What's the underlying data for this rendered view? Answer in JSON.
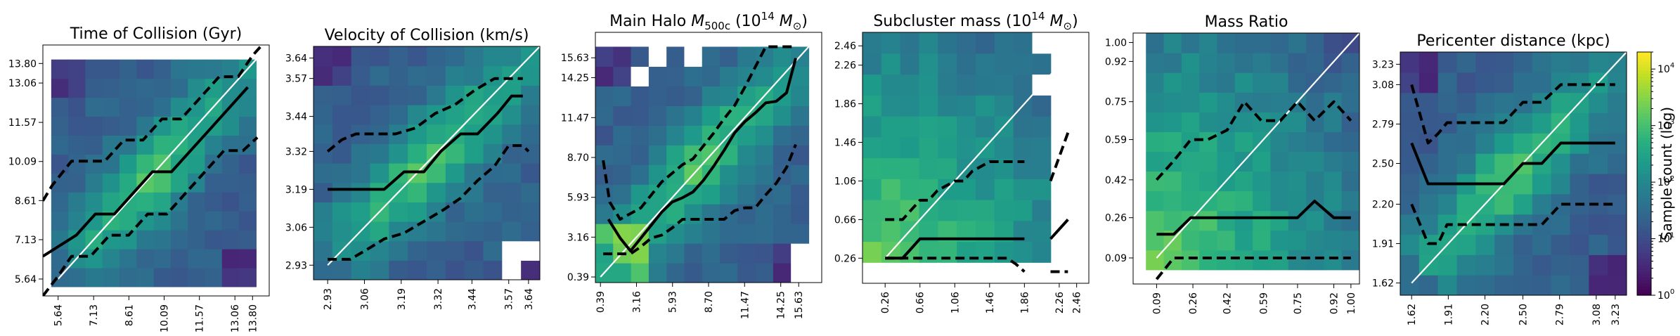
{
  "colors": {
    "colormap": [
      "#440154",
      "#482173",
      "#433e85",
      "#38588c",
      "#2d708e",
      "#25858e",
      "#1e9b8a",
      "#2ab07f",
      "#52c569",
      "#86d549",
      "#c2df23",
      "#fde725"
    ],
    "median_line": "#000000",
    "bound_line": "#000000",
    "identity_line": "#ffffff",
    "masked_cell": "#ffffff"
  },
  "colorbar": {
    "label": "Sample count (log)",
    "scale": "log",
    "range": [
      1,
      20000
    ],
    "ticks": [
      {
        "value": 1,
        "base": "10",
        "exp": "0"
      },
      {
        "value": 10,
        "base": "10",
        "exp": "1"
      },
      {
        "value": 100,
        "base": "10",
        "exp": "2"
      },
      {
        "value": 1000,
        "base": "10",
        "exp": "3"
      },
      {
        "value": 10000,
        "base": "10",
        "exp": "4"
      }
    ]
  },
  "chart_data": [
    {
      "type": "heatmap",
      "title": "Time of Collision (Gyr)",
      "grid": false,
      "lim": [
        5.0,
        14.5
      ],
      "ticks": [
        5.64,
        7.13,
        8.61,
        10.09,
        11.57,
        13.06,
        13.8
      ],
      "tick_labels": [
        "5.64",
        "7.13",
        "8.61",
        "10.09",
        "11.57",
        "13.06",
        "13.80"
      ],
      "hm_lim": [
        5.35,
        13.95
      ],
      "masked_cells": [],
      "peak_diagonal": true,
      "median": {
        "x": [
          5.0,
          6.4,
          7.2,
          8.0,
          8.8,
          9.6,
          10.4,
          11.2,
          12.0,
          12.8,
          13.6
        ],
        "y": [
          6.5,
          7.3,
          8.1,
          8.1,
          8.9,
          9.7,
          9.7,
          10.5,
          11.3,
          12.1,
          12.9
        ]
      },
      "upper": {
        "x": [
          5.0,
          5.4,
          6.2,
          6.8,
          7.6,
          8.4,
          9.2,
          10.0,
          10.8,
          11.6,
          12.4,
          13.2,
          13.8,
          14.2
        ],
        "y": [
          8.6,
          9.2,
          10.1,
          10.1,
          10.1,
          10.9,
          10.9,
          11.7,
          11.7,
          12.5,
          13.3,
          13.3,
          14.1,
          14.5
        ]
      },
      "lower": {
        "x": [
          5.0,
          5.6,
          6.2,
          7.0,
          7.8,
          8.6,
          9.4,
          10.2,
          11.0,
          11.8,
          12.6,
          13.4,
          14.0
        ],
        "y": [
          5.0,
          5.7,
          6.5,
          6.5,
          7.3,
          7.3,
          8.1,
          8.1,
          8.9,
          9.7,
          10.5,
          10.5,
          11.0
        ]
      }
    },
    {
      "type": "heatmap",
      "title": "Velocity of Collision (km/s)",
      "grid": false,
      "lim": [
        2.88,
        3.68
      ],
      "ticks": [
        2.93,
        3.06,
        3.19,
        3.32,
        3.44,
        3.57,
        3.64
      ],
      "tick_labels": [
        "2.93",
        "3.06",
        "3.19",
        "3.32",
        "3.44",
        "3.57",
        "3.64"
      ],
      "hm_lim": [
        2.88,
        3.68
      ],
      "masked_cells": [
        {
          "c": 10,
          "r": 0
        },
        {
          "c": 10,
          "r": 1
        },
        {
          "c": 11,
          "r": 1
        }
      ],
      "peak_diagonal": true,
      "median": {
        "x": [
          2.93,
          3.13,
          3.2,
          3.27,
          3.33,
          3.4,
          3.46,
          3.53,
          3.58,
          3.62
        ],
        "y": [
          3.19,
          3.19,
          3.25,
          3.25,
          3.32,
          3.38,
          3.38,
          3.45,
          3.51,
          3.51
        ]
      },
      "upper": {
        "x": [
          2.93,
          2.98,
          3.03,
          3.1,
          3.17,
          3.24,
          3.31,
          3.38,
          3.45,
          3.52,
          3.57,
          3.62
        ],
        "y": [
          3.32,
          3.36,
          3.38,
          3.38,
          3.38,
          3.4,
          3.45,
          3.48,
          3.53,
          3.57,
          3.57,
          3.57
        ]
      },
      "lower": {
        "x": [
          2.93,
          3.01,
          3.08,
          3.13,
          3.2,
          3.27,
          3.34,
          3.4,
          3.46,
          3.52,
          3.57,
          3.62,
          3.64
        ],
        "y": [
          2.95,
          2.95,
          2.99,
          3.02,
          3.04,
          3.08,
          3.12,
          3.16,
          3.22,
          3.27,
          3.34,
          3.34,
          3.32
        ]
      }
    },
    {
      "type": "heatmap",
      "title": "Main Halo $M_{500c}$ ($10^{14}\\,M_{\\odot}$)",
      "title_parts": {
        "pre": "Main Halo ",
        "m": "M",
        "sub": "500c",
        "open": " (10",
        "sup": "14",
        "unit_m": " M",
        "sun": "⊙",
        "close": ")"
      },
      "grid": false,
      "lim": [
        0.0,
        17.4
      ],
      "ticks": [
        0.39,
        3.16,
        5.93,
        8.7,
        11.47,
        14.25,
        15.63
      ],
      "tick_labels": [
        "0.39",
        "3.16",
        "5.93",
        "8.70",
        "11.47",
        "14.25",
        "15.63"
      ],
      "hm_lim": [
        0.0,
        16.4
      ],
      "masked_cells": [
        {
          "c": 2,
          "r": 10
        },
        {
          "c": 3,
          "r": 11
        },
        {
          "c": 5,
          "r": 11
        },
        {
          "c": 11,
          "r": 0
        },
        {
          "c": 11,
          "r": 1
        }
      ],
      "peak_diagonal": true,
      "median": {
        "x": [
          1.0,
          1.9,
          2.7,
          3.5,
          4.3,
          5.1,
          5.9,
          6.7,
          7.5,
          8.3,
          9.1,
          9.9,
          10.7,
          11.5,
          12.3,
          13.1,
          13.9,
          14.7,
          15.4
        ],
        "y": [
          4.4,
          3.1,
          2.2,
          3.1,
          4.0,
          4.9,
          5.6,
          5.9,
          6.3,
          7.1,
          8.1,
          9.2,
          10.4,
          11.2,
          11.8,
          12.5,
          12.6,
          13.2,
          15.6
        ]
      },
      "upper": {
        "x": [
          0.6,
          1.1,
          1.9,
          2.7,
          3.5,
          4.3,
          5.1,
          5.9,
          6.7,
          7.5,
          8.3,
          9.1,
          9.9,
          10.7,
          11.5,
          12.3,
          13.1,
          13.9,
          14.7,
          15.4
        ],
        "y": [
          8.5,
          5.6,
          4.4,
          4.8,
          5.2,
          6.1,
          7.0,
          7.6,
          8.2,
          8.6,
          9.5,
          10.4,
          11.4,
          12.3,
          13.6,
          15.0,
          16.4,
          16.4,
          16.4,
          16.4
        ]
      },
      "lower": {
        "x": [
          0.6,
          1.9,
          2.7,
          3.5,
          4.3,
          5.1,
          5.9,
          6.7,
          7.5,
          8.3,
          9.1,
          9.9,
          10.7,
          11.5,
          12.3,
          13.1,
          13.9,
          14.7,
          15.4
        ],
        "y": [
          2.0,
          2.0,
          2.0,
          2.5,
          3.1,
          3.3,
          3.8,
          4.4,
          4.4,
          4.4,
          4.4,
          4.4,
          5.0,
          5.2,
          5.2,
          6.1,
          6.9,
          8.0,
          9.6
        ]
      }
    },
    {
      "type": "heatmap",
      "title": "Subcluster mass ($10^{14}\\,M_{\\odot}$)",
      "title_parts": {
        "pre": "Subcluster mass (10",
        "sup": "14",
        "unit_m": " M",
        "sun": "⊙",
        "close": ")"
      },
      "grid": false,
      "lim": [
        0.0,
        2.6
      ],
      "ticks": [
        0.26,
        0.66,
        1.06,
        1.46,
        1.86,
        2.26,
        2.46
      ],
      "tick_labels": [
        "0.26",
        "0.66",
        "1.06",
        "1.46",
        "1.86",
        "2.26",
        "2.46"
      ],
      "hm_lim": [
        0.0,
        2.6
      ],
      "masked_cells": [
        {
          "c": 9,
          "r": 11
        },
        {
          "c": 9,
          "r": 9
        },
        {
          "c": 10
        },
        {
          "c": 11
        },
        {
          "r": 0
        }
      ],
      "peak_diagonal": false,
      "peak_corner": true,
      "median": {
        "x": [
          0.26,
          0.46,
          0.56,
          0.66,
          0.86,
          1.06,
          1.26,
          1.46,
          1.66,
          1.86
        ],
        "y": [
          0.26,
          0.26,
          0.36,
          0.46,
          0.46,
          0.46,
          0.46,
          0.46,
          0.46,
          0.46
        ]
      },
      "upper": {
        "x": [
          0.26,
          0.46,
          0.56,
          0.66,
          0.76,
          0.86,
          1.06,
          1.16,
          1.26,
          1.46,
          1.66,
          1.86
        ],
        "y": [
          0.66,
          0.66,
          0.76,
          0.86,
          0.86,
          0.96,
          1.06,
          1.06,
          1.16,
          1.26,
          1.26,
          1.26
        ]
      },
      "lower": {
        "x": [
          0.26,
          0.46,
          0.66,
          0.86,
          1.06,
          1.26,
          1.46,
          1.66,
          1.76,
          1.86
        ],
        "y": [
          0.26,
          0.26,
          0.26,
          0.26,
          0.26,
          0.26,
          0.26,
          0.26,
          0.2,
          0.12
        ]
      },
      "extra_segments": [
        {
          "style": "solid",
          "x": [
            2.16,
            2.36
          ],
          "y": [
            0.46,
            0.66
          ]
        },
        {
          "style": "dashed",
          "x": [
            2.16,
            2.36
          ],
          "y": [
            1.06,
            1.56
          ]
        },
        {
          "style": "dashed",
          "x": [
            2.16,
            2.36
          ],
          "y": [
            0.12,
            0.12
          ]
        }
      ]
    },
    {
      "type": "heatmap",
      "title": "Mass Ratio",
      "grid": false,
      "lim": [
        -0.02,
        1.04
      ],
      "ticks": [
        0.09,
        0.26,
        0.42,
        0.59,
        0.75,
        0.92,
        1.0
      ],
      "tick_labels": [
        "0.09",
        "0.26",
        "0.42",
        "0.59",
        "0.75",
        "0.92",
        "1.00"
      ],
      "hm_lim": [
        0.04,
        1.04
      ],
      "masked_cells": [],
      "peak_diagonal": false,
      "peak_corner": true,
      "median": {
        "x": [
          0.09,
          0.17,
          0.25,
          0.33,
          0.42,
          0.5,
          0.58,
          0.67,
          0.75,
          0.83,
          0.92,
          1.0
        ],
        "y": [
          0.19,
          0.19,
          0.26,
          0.26,
          0.26,
          0.26,
          0.26,
          0.26,
          0.26,
          0.33,
          0.26,
          0.26
        ]
      },
      "upper": {
        "x": [
          0.09,
          0.17,
          0.25,
          0.33,
          0.42,
          0.5,
          0.58,
          0.67,
          0.75,
          0.83,
          0.92,
          1.0
        ],
        "y": [
          0.42,
          0.5,
          0.59,
          0.59,
          0.63,
          0.75,
          0.67,
          0.67,
          0.75,
          0.67,
          0.75,
          0.67
        ]
      },
      "lower": {
        "x": [
          0.09,
          0.17,
          0.25,
          0.33,
          0.42,
          0.5,
          0.58,
          0.67,
          0.75,
          0.83,
          0.92,
          1.0
        ],
        "y": [
          0.0,
          0.09,
          0.09,
          0.09,
          0.09,
          0.09,
          0.09,
          0.09,
          0.09,
          0.09,
          0.09,
          0.09
        ]
      }
    },
    {
      "type": "heatmap",
      "title": "Pericenter distance (kpc)",
      "grid": false,
      "lim": [
        1.53,
        3.32
      ],
      "ticks": [
        1.62,
        1.91,
        2.2,
        2.5,
        2.79,
        3.08,
        3.23
      ],
      "tick_labels": [
        "1.62",
        "1.91",
        "2.20",
        "2.50",
        "2.79",
        "3.08",
        "3.23"
      ],
      "hm_lim": [
        1.53,
        3.32
      ],
      "masked_cells": [],
      "peak_diagonal": true,
      "median": {
        "x": [
          1.62,
          1.75,
          1.9,
          2.05,
          2.2,
          2.35,
          2.5,
          2.65,
          2.8,
          2.95,
          3.1,
          3.23
        ],
        "y": [
          2.65,
          2.35,
          2.35,
          2.35,
          2.35,
          2.35,
          2.5,
          2.5,
          2.65,
          2.65,
          2.65,
          2.65
        ]
      },
      "upper": {
        "x": [
          1.62,
          1.75,
          1.83,
          1.9,
          2.05,
          2.2,
          2.35,
          2.5,
          2.65,
          2.8,
          2.95,
          3.1,
          3.23
        ],
        "y": [
          3.08,
          2.65,
          2.72,
          2.8,
          2.8,
          2.8,
          2.8,
          2.95,
          2.95,
          3.08,
          3.08,
          3.08,
          3.08
        ]
      },
      "lower": {
        "x": [
          1.62,
          1.75,
          1.83,
          1.9,
          2.05,
          2.2,
          2.35,
          2.5,
          2.65,
          2.8,
          2.95,
          3.1,
          3.23
        ],
        "y": [
          2.2,
          1.91,
          1.91,
          2.05,
          2.05,
          2.05,
          2.05,
          2.05,
          2.05,
          2.2,
          2.2,
          2.2,
          2.2
        ]
      }
    }
  ]
}
